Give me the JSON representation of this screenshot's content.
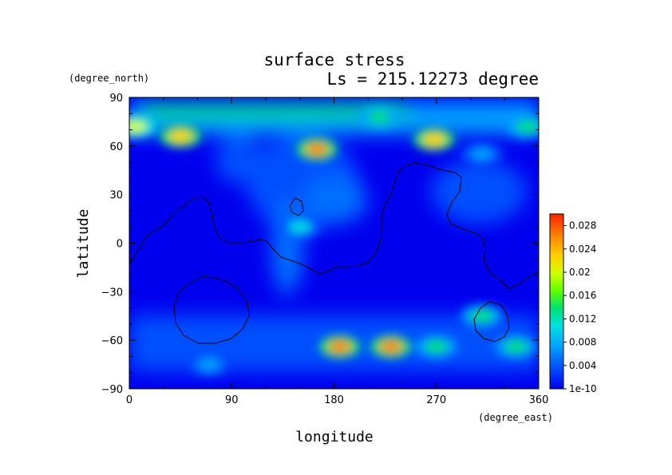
{
  "chart_data": {
    "type": "heatmap",
    "title": "surface stress",
    "subtitle": "Ls = 215.12273 degree",
    "xlabel": "longitude",
    "ylabel": "latitude",
    "x_units": "(degree_east)",
    "y_units": "(degree_north)",
    "xlim": [
      0,
      360
    ],
    "ylim": [
      -90,
      90
    ],
    "x_ticks": [
      "0",
      "90",
      "180",
      "270",
      "360"
    ],
    "y_ticks": [
      "90",
      "60",
      "30",
      "0",
      "−30",
      "−60",
      "−90"
    ],
    "x_tick_values": [
      0,
      90,
      180,
      270,
      360
    ],
    "y_tick_values": [
      90,
      60,
      30,
      0,
      -30,
      -60,
      -90
    ],
    "colorbar": {
      "labels": [
        "0.028",
        "0.024",
        "0.02",
        "0.016",
        "0.012",
        "0.008",
        "0.004",
        "1e-10"
      ],
      "values": [
        0.028,
        0.024,
        0.02,
        0.016,
        0.012,
        0.008,
        0.004,
        0.0
      ],
      "range": [
        0,
        0.03
      ],
      "colormap": [
        "#0000ff",
        "#0050ff",
        "#00a0ff",
        "#00e0e0",
        "#00e070",
        "#60ff00",
        "#d0ff00",
        "#ffd000",
        "#ff8000",
        "#ff2000"
      ]
    },
    "hotspots": [
      {
        "lon": 5,
        "lat": 72,
        "value": 0.02
      },
      {
        "lon": 45,
        "lat": 66,
        "value": 0.022
      },
      {
        "lon": 165,
        "lat": 58,
        "value": 0.026
      },
      {
        "lon": 220,
        "lat": 78,
        "value": 0.012
      },
      {
        "lon": 268,
        "lat": 64,
        "value": 0.022
      },
      {
        "lon": 350,
        "lat": 72,
        "value": 0.014
      },
      {
        "lon": 150,
        "lat": 10,
        "value": 0.01
      },
      {
        "lon": 185,
        "lat": -64,
        "value": 0.024
      },
      {
        "lon": 230,
        "lat": -64,
        "value": 0.026
      },
      {
        "lon": 270,
        "lat": -64,
        "value": 0.012
      },
      {
        "lon": 310,
        "lat": -45,
        "value": 0.014
      },
      {
        "lon": 340,
        "lat": -64,
        "value": 0.012
      },
      {
        "lon": 70,
        "lat": -75,
        "value": 0.008
      },
      {
        "lon": 310,
        "lat": 55,
        "value": 0.008
      }
    ]
  }
}
